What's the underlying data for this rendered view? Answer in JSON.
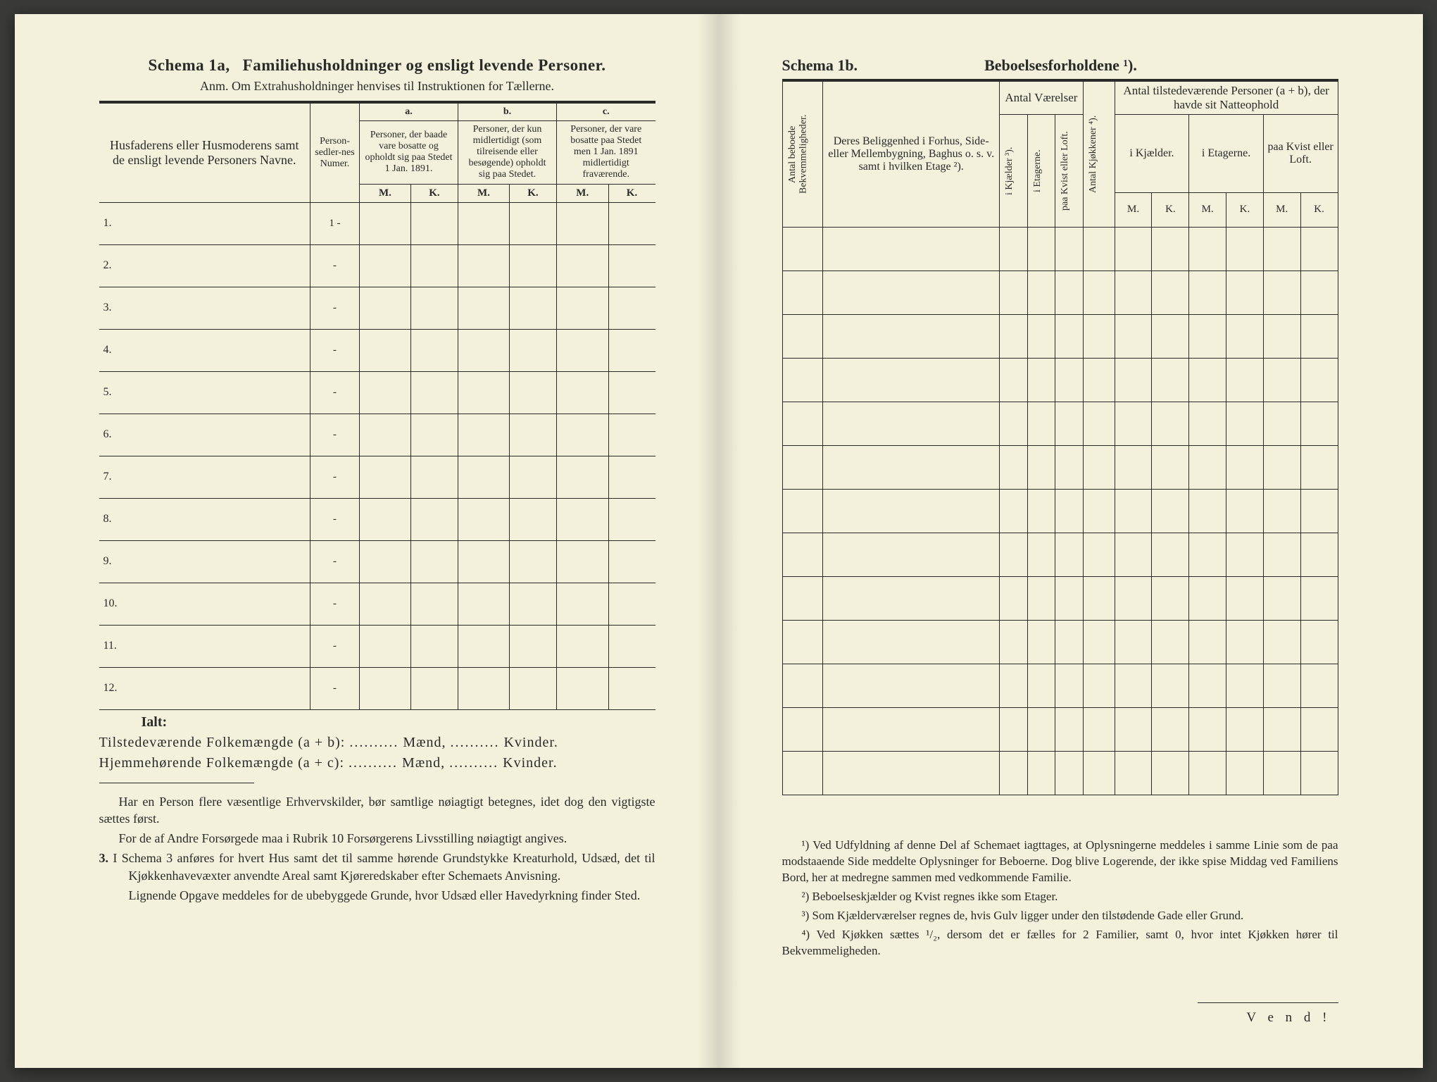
{
  "left": {
    "title_prefix": "Schema 1a,",
    "title_main": "Familiehusholdninger og ensligt levende Personer.",
    "anm": "Anm.  Om Extrahusholdninger henvises til Instruktionen for Tællerne.",
    "col_names": "Husfaderens eller Husmoderens samt de ensligt levende Personers Navne.",
    "col_personsedler": "Person-sedler-nes Numer.",
    "a_label": "a.",
    "b_label": "b.",
    "c_label": "c.",
    "a_text": "Personer, der baade vare bosatte og opholdt sig paa Stedet 1 Jan. 1891.",
    "b_text": "Personer, der kun midlertidigt (som tilreisende eller besøgende) opholdt sig paa Stedet.",
    "c_text": "Personer, der vare bosatte paa Stedet men 1 Jan. 1891 midlertidigt fraværende.",
    "M": "M.",
    "K": "K.",
    "rows": [
      "1.",
      "2.",
      "3.",
      "4.",
      "5.",
      "6.",
      "7.",
      "8.",
      "9.",
      "10.",
      "11.",
      "12."
    ],
    "row_marker": "-",
    "ialt": "Ialt:",
    "sum1_label": "Tilstedeværende Folkemængde (a + b):",
    "sum2_label": "Hjemmehørende Folkemængde (a + c):",
    "maend": "Mænd,",
    "kvinder": "Kvinder.",
    "dots": "..........",
    "para1": "Har en Person flere væsentlige Erhvervskilder, bør samtlige nøiagtigt betegnes, idet dog den vigtigste sættes først.",
    "para2": "For de af Andre Forsørgede maa i Rubrik 10 Forsørgerens Livsstilling nøiagtigt angives.",
    "para3_num": "3.",
    "para3": "I Schema 3 anføres for hvert Hus samt det til samme hørende Grundstykke Kreaturhold, Udsæd, det til Kjøkkenhavevæxter anvendte Areal samt Kjøreredskaber efter Schemaets Anvisning.",
    "para4": "Lignende Opgave meddeles for de ubebyggede Grunde, hvor Udsæd eller Havedyrkning finder Sted."
  },
  "right": {
    "title_a": "Schema 1b.",
    "title_b": "Beboelsesforholdene ¹).",
    "col_antal_beboede": "Antal beboede Bekvemmeligheder.",
    "col_beliggenhed": "Deres Beliggenhed i Forhus, Side- eller Mellembygning, Baghus o. s. v. samt i hvilken Etage ²).",
    "col_antal_vaer": "Antal Værelser",
    "col_i_kjaelder": "i Kjælder ³).",
    "col_i_etagerne_v": "i Etagerne.",
    "col_paa_kvist": "paa Kvist eller Loft.",
    "col_antal_kjok": "Antal Kjøkkener ⁴).",
    "col_antal_tilst": "Antal tilstedeværende Personer (a + b), der havde sit Natteophold",
    "col_i_kjael": "i Kjælder.",
    "col_i_etag": "i Etagerne.",
    "col_paa_kvist2": "paa Kvist eller Loft.",
    "M": "M.",
    "K": "K.",
    "row_count": 13,
    "fn1": "¹) Ved Udfyldning af denne Del af Schemaet iagttages, at Oplysningerne meddeles i samme Linie som de paa modstaaende Side meddelte Oplysninger for Beboerne. Dog blive Logerende, der ikke spise Middag ved Familiens Bord, her at medregne sammen med vedkommende Familie.",
    "fn2": "²) Beboelseskjælder og Kvist regnes ikke som Etager.",
    "fn3": "³) Som Kjælderværelser regnes de, hvis Gulv ligger under den tilstødende Gade eller Grund.",
    "fn4": "⁴) Ved Kjøkken sættes ¹/₂, dersom det er fælles for 2 Familier, samt 0, hvor intet Kjøkken hører til Bekvemmeligheden.",
    "vend": "V e n d !"
  },
  "colors": {
    "paper": "#f3f0dc",
    "ink": "#2a2a28",
    "background": "#3a3a38"
  }
}
